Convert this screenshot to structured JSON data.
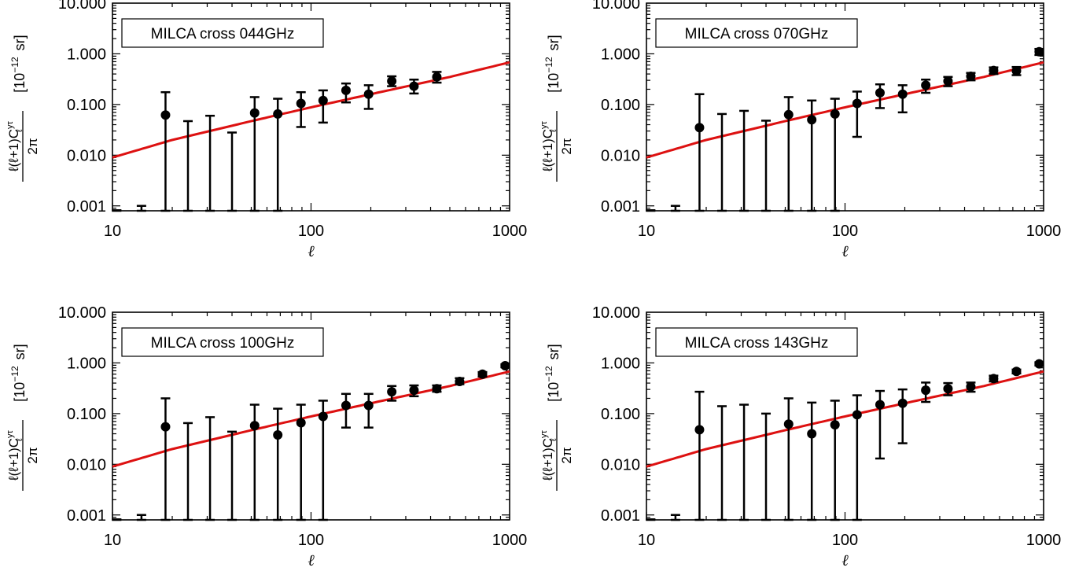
{
  "figure": {
    "ylabel_pre": "ℓ(ℓ+1)C",
    "ylabel_sup": "yτ",
    "ylabel_sub": "ℓ",
    "ylabel_den": "2π",
    "yunit_pre": "[10",
    "yunit_exp": "−12",
    "yunit_post": "sr]"
  },
  "colors": {
    "model": "#dd1111",
    "data": "#000000",
    "axes": "#000000"
  },
  "chart_data": [
    {
      "type": "scatter",
      "title": "MILCA cross 044GHz",
      "xlabel": "ℓ",
      "xscale": "log",
      "yscale": "log",
      "xlim": [
        10,
        1000
      ],
      "ylim": [
        0.0008,
        10
      ],
      "xticks": [
        {
          "v": 10,
          "label": "10"
        },
        {
          "v": 100,
          "label": "100"
        },
        {
          "v": 1000,
          "label": "1000"
        }
      ],
      "yticks": [
        {
          "v": 0.001,
          "label": "0.001"
        },
        {
          "v": 0.01,
          "label": "0.010"
        },
        {
          "v": 0.1,
          "label": "0.100"
        },
        {
          "v": 1,
          "label": "1.000"
        },
        {
          "v": 10,
          "label": "10.000"
        }
      ],
      "points": [
        {
          "x": 10.5,
          "hi": 0.00082
        },
        {
          "x": 14,
          "hi": 0.001
        },
        {
          "x": 18.5,
          "y": 0.062,
          "hi": 0.175
        },
        {
          "x": 24,
          "hi": 0.047
        },
        {
          "x": 31,
          "hi": 0.06
        },
        {
          "x": 40,
          "hi": 0.028
        },
        {
          "x": 52,
          "y": 0.068,
          "hi": 0.14
        },
        {
          "x": 68,
          "y": 0.065,
          "hi": 0.13
        },
        {
          "x": 89,
          "y": 0.105,
          "lo": 0.036,
          "hi": 0.175
        },
        {
          "x": 115,
          "y": 0.12,
          "lo": 0.044,
          "hi": 0.19
        },
        {
          "x": 150,
          "y": 0.19,
          "lo": 0.11,
          "hi": 0.26
        },
        {
          "x": 195,
          "y": 0.16,
          "lo": 0.082,
          "hi": 0.24
        },
        {
          "x": 255,
          "y": 0.29,
          "lo": 0.23,
          "hi": 0.36
        },
        {
          "x": 330,
          "y": 0.23,
          "lo": 0.165,
          "hi": 0.31
        },
        {
          "x": 430,
          "y": 0.35,
          "lo": 0.27,
          "hi": 0.44
        }
      ],
      "model": {
        "x": [
          10,
          20,
          50,
          100,
          200,
          500,
          1000
        ],
        "y": [
          0.009,
          0.02,
          0.047,
          0.088,
          0.16,
          0.35,
          0.68
        ]
      }
    },
    {
      "type": "scatter",
      "title": "MILCA cross 070GHz",
      "xlabel": "ℓ",
      "xscale": "log",
      "yscale": "log",
      "xlim": [
        10,
        1000
      ],
      "ylim": [
        0.0008,
        10
      ],
      "xticks": [
        {
          "v": 10,
          "label": "10"
        },
        {
          "v": 100,
          "label": "100"
        },
        {
          "v": 1000,
          "label": "1000"
        }
      ],
      "yticks": [
        {
          "v": 0.001,
          "label": "0.001"
        },
        {
          "v": 0.01,
          "label": "0.010"
        },
        {
          "v": 0.1,
          "label": "0.100"
        },
        {
          "v": 1,
          "label": "1.000"
        },
        {
          "v": 10,
          "label": "10.000"
        }
      ],
      "points": [
        {
          "x": 10.5,
          "hi": 0.00082
        },
        {
          "x": 14,
          "hi": 0.001
        },
        {
          "x": 18.5,
          "y": 0.035,
          "hi": 0.16
        },
        {
          "x": 24,
          "hi": 0.065
        },
        {
          "x": 31,
          "hi": 0.075
        },
        {
          "x": 40,
          "hi": 0.048
        },
        {
          "x": 52,
          "y": 0.063,
          "hi": 0.14
        },
        {
          "x": 68,
          "y": 0.05,
          "hi": 0.12
        },
        {
          "x": 89,
          "y": 0.065,
          "hi": 0.13
        },
        {
          "x": 115,
          "y": 0.105,
          "lo": 0.023,
          "hi": 0.18
        },
        {
          "x": 150,
          "y": 0.17,
          "lo": 0.085,
          "hi": 0.25
        },
        {
          "x": 195,
          "y": 0.16,
          "lo": 0.07,
          "hi": 0.24
        },
        {
          "x": 255,
          "y": 0.24,
          "lo": 0.17,
          "hi": 0.31
        },
        {
          "x": 330,
          "y": 0.29,
          "lo": 0.23,
          "hi": 0.35
        },
        {
          "x": 430,
          "y": 0.36,
          "lo": 0.3,
          "hi": 0.42
        },
        {
          "x": 560,
          "y": 0.47,
          "lo": 0.4,
          "hi": 0.54
        },
        {
          "x": 730,
          "y": 0.46,
          "lo": 0.38,
          "hi": 0.55
        },
        {
          "x": 950,
          "y": 1.1,
          "lo": 0.95,
          "hi": 1.25
        }
      ],
      "model": {
        "x": [
          10,
          20,
          50,
          100,
          200,
          500,
          1000
        ],
        "y": [
          0.009,
          0.02,
          0.047,
          0.088,
          0.16,
          0.35,
          0.68
        ]
      }
    },
    {
      "type": "scatter",
      "title": "MILCA cross 100GHz",
      "xlabel": "ℓ",
      "xscale": "log",
      "yscale": "log",
      "xlim": [
        10,
        1000
      ],
      "ylim": [
        0.0008,
        10
      ],
      "xticks": [
        {
          "v": 10,
          "label": "10"
        },
        {
          "v": 100,
          "label": "100"
        },
        {
          "v": 1000,
          "label": "1000"
        }
      ],
      "yticks": [
        {
          "v": 0.001,
          "label": "0.001"
        },
        {
          "v": 0.01,
          "label": "0.010"
        },
        {
          "v": 0.1,
          "label": "0.100"
        },
        {
          "v": 1,
          "label": "1.000"
        },
        {
          "v": 10,
          "label": "10.000"
        }
      ],
      "points": [
        {
          "x": 10.5,
          "hi": 0.00082
        },
        {
          "x": 14,
          "hi": 0.001
        },
        {
          "x": 18.5,
          "y": 0.055,
          "hi": 0.2
        },
        {
          "x": 24,
          "hi": 0.065
        },
        {
          "x": 31,
          "hi": 0.085
        },
        {
          "x": 40,
          "hi": 0.044
        },
        {
          "x": 52,
          "y": 0.058,
          "hi": 0.15
        },
        {
          "x": 68,
          "y": 0.038,
          "hi": 0.125
        },
        {
          "x": 89,
          "y": 0.066,
          "hi": 0.15
        },
        {
          "x": 115,
          "y": 0.088,
          "hi": 0.18
        },
        {
          "x": 150,
          "y": 0.145,
          "lo": 0.053,
          "hi": 0.245
        },
        {
          "x": 195,
          "y": 0.145,
          "lo": 0.053,
          "hi": 0.245
        },
        {
          "x": 255,
          "y": 0.27,
          "lo": 0.18,
          "hi": 0.35
        },
        {
          "x": 330,
          "y": 0.29,
          "lo": 0.22,
          "hi": 0.36
        },
        {
          "x": 430,
          "y": 0.31,
          "lo": 0.27,
          "hi": 0.36
        },
        {
          "x": 560,
          "y": 0.43,
          "lo": 0.38,
          "hi": 0.5
        },
        {
          "x": 730,
          "y": 0.6,
          "lo": 0.54,
          "hi": 0.66
        },
        {
          "x": 950,
          "y": 0.88,
          "lo": 0.82,
          "hi": 0.94
        }
      ],
      "model": {
        "x": [
          10,
          20,
          50,
          100,
          200,
          500,
          1000
        ],
        "y": [
          0.009,
          0.02,
          0.047,
          0.088,
          0.16,
          0.35,
          0.68
        ]
      }
    },
    {
      "type": "scatter",
      "title": "MILCA cross 143GHz",
      "xlabel": "ℓ",
      "xscale": "log",
      "yscale": "log",
      "xlim": [
        10,
        1000
      ],
      "ylim": [
        0.0008,
        10
      ],
      "xticks": [
        {
          "v": 10,
          "label": "10"
        },
        {
          "v": 100,
          "label": "100"
        },
        {
          "v": 1000,
          "label": "1000"
        }
      ],
      "yticks": [
        {
          "v": 0.001,
          "label": "0.001"
        },
        {
          "v": 0.01,
          "label": "0.010"
        },
        {
          "v": 0.1,
          "label": "0.100"
        },
        {
          "v": 1,
          "label": "1.000"
        },
        {
          "v": 10,
          "label": "10.000"
        }
      ],
      "points": [
        {
          "x": 10.5,
          "hi": 0.00082
        },
        {
          "x": 14,
          "hi": 0.001
        },
        {
          "x": 18.5,
          "y": 0.048,
          "hi": 0.27
        },
        {
          "x": 24,
          "hi": 0.14
        },
        {
          "x": 31,
          "hi": 0.15
        },
        {
          "x": 40,
          "hi": 0.1
        },
        {
          "x": 52,
          "y": 0.062,
          "hi": 0.2
        },
        {
          "x": 68,
          "y": 0.04,
          "hi": 0.165
        },
        {
          "x": 89,
          "y": 0.06,
          "hi": 0.18
        },
        {
          "x": 115,
          "y": 0.095,
          "hi": 0.23
        },
        {
          "x": 150,
          "y": 0.15,
          "lo": 0.013,
          "hi": 0.28
        },
        {
          "x": 195,
          "y": 0.16,
          "lo": 0.026,
          "hi": 0.3
        },
        {
          "x": 255,
          "y": 0.29,
          "lo": 0.17,
          "hi": 0.41
        },
        {
          "x": 330,
          "y": 0.31,
          "lo": 0.23,
          "hi": 0.4
        },
        {
          "x": 430,
          "y": 0.34,
          "lo": 0.27,
          "hi": 0.41
        },
        {
          "x": 560,
          "y": 0.49,
          "lo": 0.43,
          "hi": 0.56
        },
        {
          "x": 730,
          "y": 0.68,
          "lo": 0.62,
          "hi": 0.74
        },
        {
          "x": 950,
          "y": 0.96,
          "lo": 0.89,
          "hi": 1.03
        }
      ],
      "model": {
        "x": [
          10,
          20,
          50,
          100,
          200,
          500,
          1000
        ],
        "y": [
          0.009,
          0.02,
          0.047,
          0.088,
          0.16,
          0.35,
          0.68
        ]
      }
    }
  ]
}
